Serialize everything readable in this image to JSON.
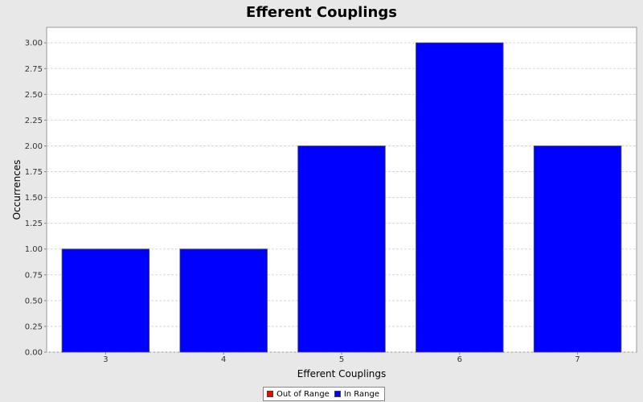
{
  "chart_data": {
    "type": "bar",
    "title": "Efferent Couplings",
    "xlabel": "Efferent Couplings",
    "ylabel": "Occurrences",
    "categories": [
      "3",
      "4",
      "5",
      "6",
      "7"
    ],
    "values": [
      1,
      1,
      2,
      3,
      2
    ],
    "ylim": [
      0,
      3.15
    ],
    "yticks": [
      "0.00",
      "0.25",
      "0.50",
      "0.75",
      "1.00",
      "1.25",
      "1.50",
      "1.75",
      "2.00",
      "2.25",
      "2.50",
      "2.75",
      "3.00"
    ],
    "grid": true,
    "bar_color": "#0000ff",
    "legend": {
      "position": "bottom",
      "items": [
        {
          "label": "Out of Range",
          "color": "#ff0000"
        },
        {
          "label": "In Range",
          "color": "#0000ff"
        }
      ]
    }
  }
}
